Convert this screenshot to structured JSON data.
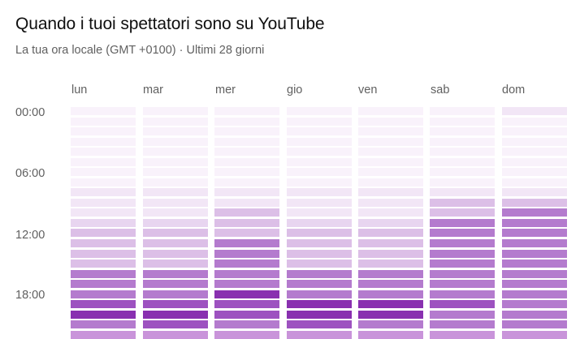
{
  "title": "Quando i tuoi spettatori sono su YouTube",
  "subtitle": "La tua ora locale (GMT +0100) · Ultimi 28 giorni",
  "days": [
    "lun",
    "mar",
    "mer",
    "gio",
    "ven",
    "sab",
    "dom"
  ],
  "time_labels": [
    "00:00",
    "06:00",
    "12:00",
    "18:00"
  ],
  "colors": {
    "levels": [
      "#f9f2fb",
      "#f2e6f6",
      "#e8d5f0",
      "#dcbfe7",
      "#c994da",
      "#b47bce",
      "#9d52c0",
      "#8930b0"
    ]
  },
  "chart_data": {
    "type": "heatmap",
    "title": "Quando i tuoi spettatori sono su YouTube",
    "xlabel": "",
    "ylabel": "",
    "x": [
      "lun",
      "mar",
      "mer",
      "gio",
      "ven",
      "sab",
      "dom"
    ],
    "y": [
      "00:00",
      "01:00",
      "02:00",
      "03:00",
      "04:00",
      "05:00",
      "06:00",
      "07:00",
      "08:00",
      "09:00",
      "10:00",
      "11:00",
      "12:00",
      "13:00",
      "14:00",
      "15:00",
      "16:00",
      "17:00",
      "18:00",
      "19:00",
      "20:00",
      "21:00",
      "22:00"
    ],
    "levels_min_max": [
      0,
      7
    ],
    "values": [
      [
        0,
        0,
        0,
        0,
        0,
        0,
        1
      ],
      [
        0,
        0,
        0,
        0,
        0,
        0,
        0
      ],
      [
        0,
        0,
        0,
        0,
        0,
        0,
        0
      ],
      [
        0,
        0,
        0,
        0,
        0,
        0,
        0
      ],
      [
        0,
        0,
        0,
        0,
        0,
        0,
        0
      ],
      [
        0,
        0,
        0,
        0,
        0,
        0,
        0
      ],
      [
        0,
        0,
        0,
        0,
        0,
        0,
        0
      ],
      [
        0,
        0,
        0,
        0,
        0,
        0,
        0
      ],
      [
        1,
        1,
        1,
        1,
        1,
        1,
        1
      ],
      [
        1,
        1,
        1,
        1,
        1,
        3,
        3
      ],
      [
        1,
        1,
        3,
        1,
        1,
        3,
        5
      ],
      [
        2,
        2,
        3,
        2,
        2,
        5,
        5
      ],
      [
        3,
        3,
        3,
        3,
        3,
        5,
        5
      ],
      [
        3,
        3,
        5,
        3,
        3,
        5,
        5
      ],
      [
        3,
        3,
        5,
        3,
        3,
        5,
        5
      ],
      [
        3,
        3,
        5,
        3,
        3,
        5,
        5
      ],
      [
        5,
        5,
        5,
        5,
        5,
        5,
        5
      ],
      [
        5,
        5,
        5,
        5,
        5,
        5,
        5
      ],
      [
        5,
        5,
        7,
        5,
        5,
        5,
        5
      ],
      [
        6,
        6,
        6,
        7,
        7,
        6,
        5
      ],
      [
        7,
        7,
        6,
        7,
        7,
        5,
        5
      ],
      [
        5,
        6,
        5,
        6,
        5,
        5,
        5
      ],
      [
        4,
        4,
        4,
        4,
        4,
        4,
        4
      ]
    ]
  }
}
